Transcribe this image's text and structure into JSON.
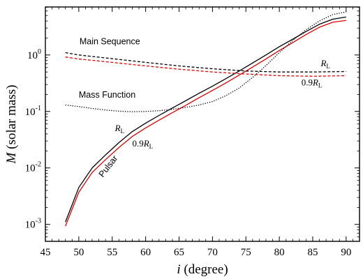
{
  "chart_data": {
    "type": "line",
    "xlabel": {
      "italic": "i",
      "rest": " (degree)"
    },
    "ylabel": {
      "italic": "M",
      "rest": " (solar mass)"
    },
    "xlim": [
      45,
      92
    ],
    "ylim_log10": [
      -3.3,
      0.85
    ],
    "y_scale": "log",
    "x_ticks": [
      45,
      50,
      55,
      60,
      65,
      70,
      75,
      80,
      85,
      90
    ],
    "y_ticks": [
      {
        "exp": -3,
        "base": "10",
        "sup": "-3"
      },
      {
        "exp": -2,
        "base": "10",
        "sup": "-2"
      },
      {
        "exp": -1,
        "base": "10",
        "sup": "-1"
      },
      {
        "exp": 0,
        "base": "10",
        "sup": "0"
      }
    ],
    "grid": false,
    "series": [
      {
        "color": "#000000",
        "dash": "solid",
        "x": [
          48,
          50,
          52,
          54,
          56,
          58,
          60,
          62,
          64,
          66,
          68,
          70,
          72,
          74,
          76,
          78,
          80,
          82,
          84,
          86,
          88,
          90
        ],
        "y": [
          0.0011,
          0.0045,
          0.01,
          0.017,
          0.028,
          0.044,
          0.062,
          0.085,
          0.115,
          0.155,
          0.21,
          0.28,
          0.38,
          0.52,
          0.72,
          1.0,
          1.4,
          1.9,
          2.6,
          3.5,
          4.3,
          4.7
        ]
      },
      {
        "color": "#e00000",
        "dash": "solid",
        "x": [
          48,
          50,
          52,
          54,
          56,
          58,
          60,
          62,
          64,
          66,
          68,
          70,
          72,
          74,
          76,
          78,
          80,
          82,
          84,
          86,
          88,
          90
        ],
        "y": [
          0.00093,
          0.0037,
          0.0083,
          0.014,
          0.023,
          0.036,
          0.051,
          0.07,
          0.095,
          0.128,
          0.175,
          0.235,
          0.32,
          0.44,
          0.61,
          0.85,
          1.2,
          1.65,
          2.3,
          3.1,
          3.8,
          4.1
        ]
      },
      {
        "color": "#000000",
        "dash": "dashed",
        "x": [
          48,
          50,
          55,
          60,
          65,
          70,
          75,
          80,
          85,
          90
        ],
        "y": [
          1.1,
          1.0,
          0.86,
          0.74,
          0.64,
          0.57,
          0.52,
          0.5,
          0.5,
          0.51
        ]
      },
      {
        "color": "#e00000",
        "dash": "dashed",
        "x": [
          48,
          50,
          55,
          60,
          65,
          70,
          75,
          80,
          85,
          90
        ],
        "y": [
          0.92,
          0.85,
          0.74,
          0.64,
          0.56,
          0.5,
          0.46,
          0.43,
          0.42,
          0.43
        ]
      },
      {
        "color": "#000000",
        "dash": "dotted",
        "x": [
          48,
          50,
          52,
          54,
          56,
          58,
          60,
          62,
          64,
          66,
          68,
          70,
          72,
          74,
          76,
          78,
          80,
          82,
          84,
          86,
          88,
          90
        ],
        "y": [
          0.13,
          0.122,
          0.113,
          0.106,
          0.101,
          0.099,
          0.1,
          0.103,
          0.109,
          0.118,
          0.13,
          0.15,
          0.19,
          0.26,
          0.4,
          0.65,
          1.1,
          1.8,
          2.8,
          4.0,
          5.2,
          5.8
        ]
      }
    ],
    "annotations": [
      {
        "text": "Main Sequence",
        "style": "sans",
        "x": 50.1,
        "y": 1.55
      },
      {
        "text": "Mass Function",
        "style": "sans",
        "x": 50.0,
        "y": 0.175
      },
      {
        "text": "Pulsar",
        "style": "sans",
        "x": 53.6,
        "y": 0.0067,
        "rotate": -52
      },
      {
        "text": "R",
        "sub": "L",
        "style": "serif-italic",
        "x": 55.4,
        "y": 0.045
      },
      {
        "text": "0.9R",
        "sub": "L",
        "style": "serif-italic-mixed",
        "x": 58.0,
        "y": 0.024
      },
      {
        "text": "R",
        "sub": "L",
        "style": "serif-italic",
        "x": 86.2,
        "y": 0.63
      },
      {
        "text": "0.9R",
        "sub": "L",
        "style": "serif-italic-mixed",
        "x": 83.3,
        "y": 0.29
      }
    ]
  }
}
